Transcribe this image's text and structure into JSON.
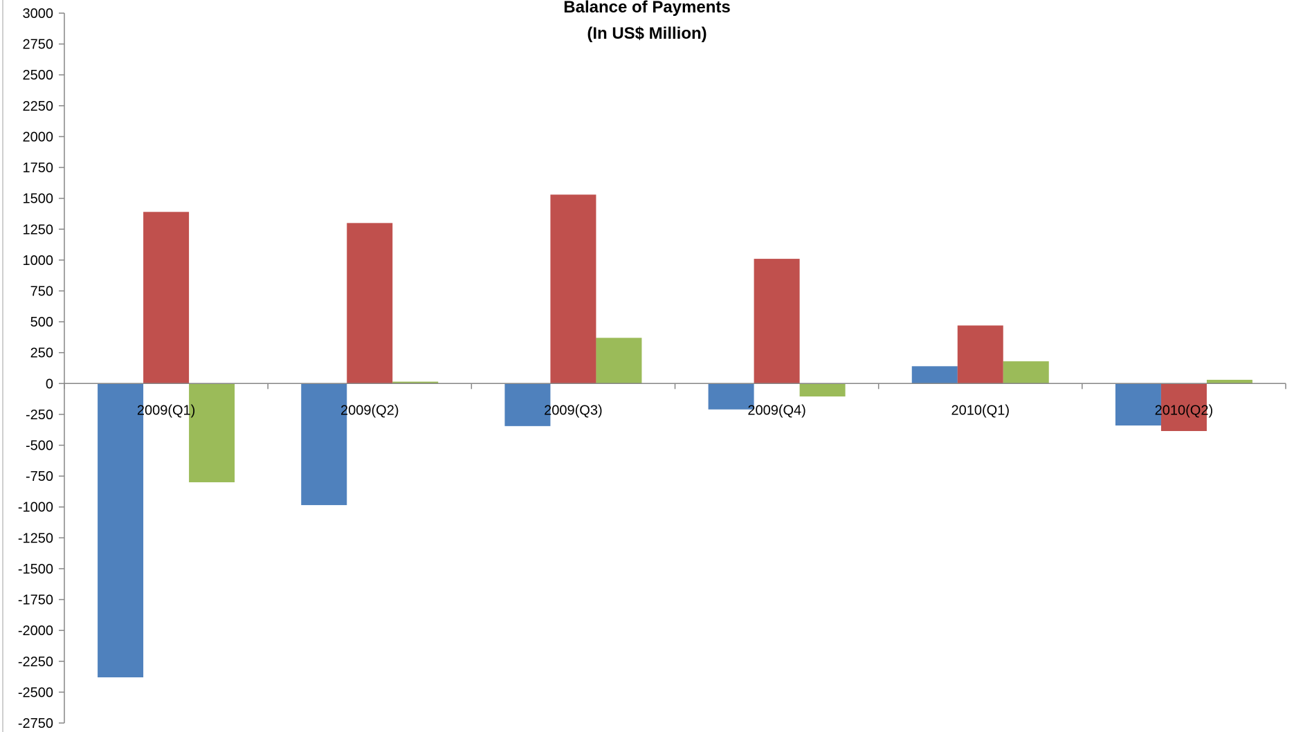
{
  "chart_data": {
    "type": "bar",
    "title": "Balance of Payments",
    "subtitle": "(In US$ Million)",
    "xlabel": "",
    "ylabel": "",
    "ylim": [
      -2750,
      3000
    ],
    "ytick_step": 250,
    "grid": false,
    "legend": "none",
    "categories": [
      "2009(Q1)",
      "2009(Q2)",
      "2009(Q3)",
      "2009(Q4)",
      "2010(Q1)",
      "2010(Q2)"
    ],
    "series": [
      {
        "color": "#4F81BD",
        "values": [
          -2380,
          -985,
          -345,
          -210,
          140,
          -340
        ]
      },
      {
        "color": "#C0504D",
        "values": [
          1390,
          1300,
          1530,
          1010,
          470,
          -385
        ]
      },
      {
        "color": "#9BBB59",
        "values": [
          -800,
          15,
          370,
          -105,
          180,
          30
        ]
      }
    ]
  }
}
